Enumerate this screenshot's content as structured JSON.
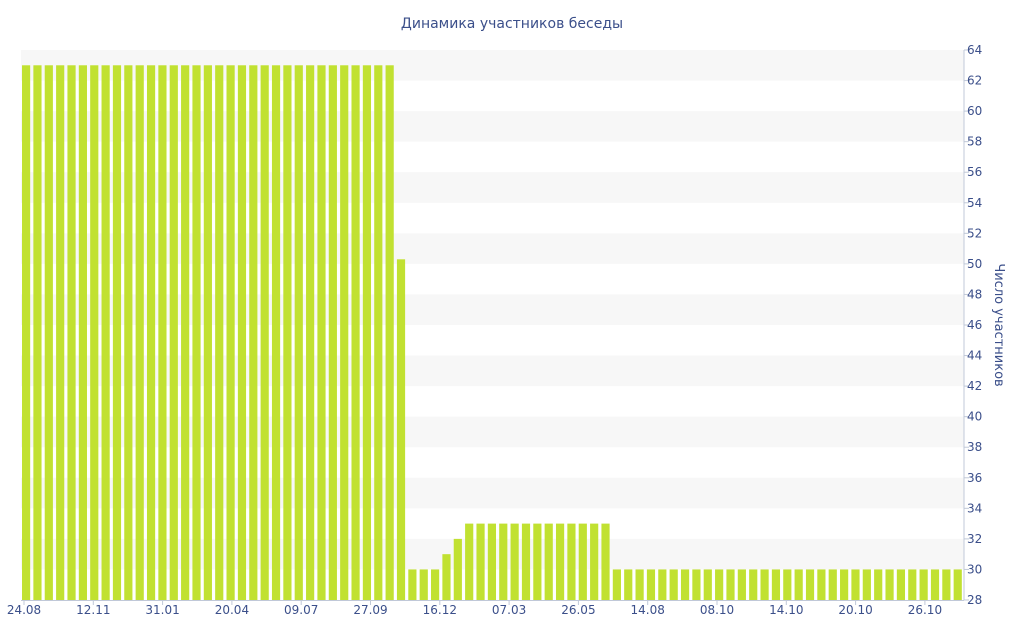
{
  "chart_data": {
    "type": "bar",
    "title": "Динамика участников беседы",
    "xlabel": "",
    "ylabel": "Число участников",
    "ylim": [
      28,
      64
    ],
    "yticks": [
      28,
      30,
      32,
      34,
      36,
      38,
      40,
      42,
      44,
      46,
      48,
      50,
      52,
      54,
      56,
      58,
      60,
      62,
      64
    ],
    "xtick_labels": [
      "24.08",
      "12.11",
      "31.01",
      "20.04",
      "09.07",
      "27.09",
      "16.12",
      "07.03",
      "26.05",
      "14.08",
      "08.10",
      "14.10",
      "20.10",
      "26.10"
    ],
    "y_axis_position": "right",
    "grid": "horizontal bands",
    "legend": "none",
    "bar_color": "#c1e131",
    "band_color": "#f7f7f7",
    "values": [
      63,
      63,
      63,
      63,
      63,
      63,
      63,
      63,
      63,
      63,
      63,
      63,
      63,
      63,
      63,
      63,
      63,
      63,
      63,
      63,
      63,
      63,
      63,
      63,
      63,
      63,
      63,
      63,
      63,
      63,
      63,
      63,
      63,
      50.3,
      30,
      30,
      30,
      31,
      32,
      33,
      33,
      33,
      33,
      33,
      33,
      33,
      33,
      33,
      33,
      33,
      33,
      33,
      30,
      30,
      30,
      30,
      30,
      30,
      30,
      30,
      30,
      30,
      30,
      30,
      30,
      30,
      30,
      30,
      30,
      30,
      30,
      30,
      30,
      30,
      30,
      30,
      30,
      30,
      30,
      30,
      30,
      30,
      30
    ]
  }
}
